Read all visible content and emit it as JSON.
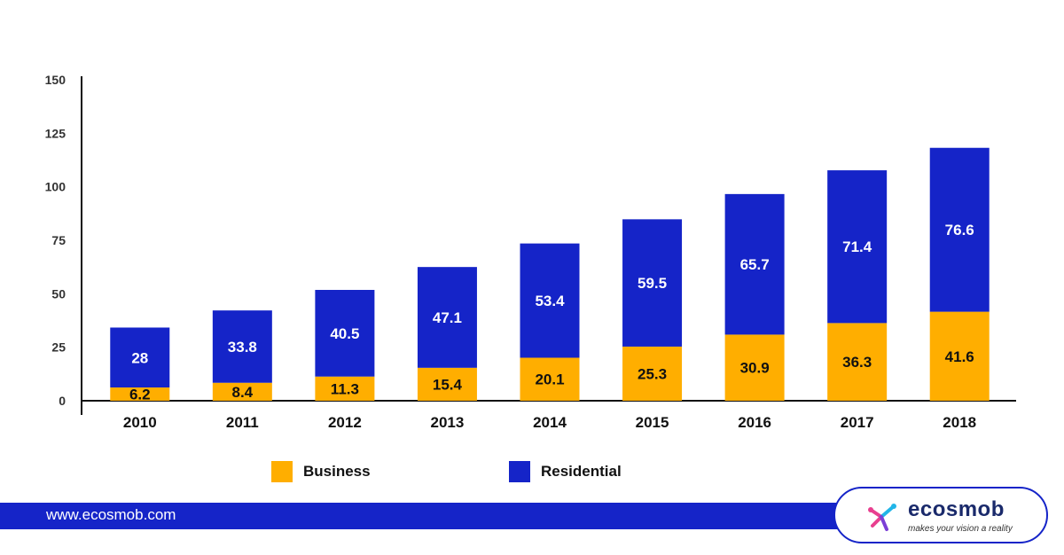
{
  "chart_data": {
    "type": "bar",
    "stacked": true,
    "categories": [
      "2010",
      "2011",
      "2012",
      "2013",
      "2014",
      "2015",
      "2016",
      "2017",
      "2018"
    ],
    "series": [
      {
        "name": "Business",
        "color": "#ffae00",
        "values": [
          6.2,
          8.4,
          11.3,
          15.4,
          20.1,
          25.3,
          30.9,
          36.3,
          41.6
        ],
        "labels": [
          "6.2",
          "8.4",
          "11.3",
          "15.4",
          "20.1",
          "25.3",
          "30.9",
          "36.3",
          "41.6"
        ]
      },
      {
        "name": "Residential",
        "color": "#1524c8",
        "values": [
          28,
          33.8,
          40.5,
          47.1,
          53.4,
          59.5,
          65.7,
          71.4,
          76.6
        ],
        "labels": [
          "28",
          "33.8",
          "40.5",
          "47.1",
          "53.4",
          "59.5",
          "65.7",
          "71.4",
          "76.6"
        ]
      }
    ],
    "title": "",
    "xlabel": "",
    "ylabel": "",
    "ylim": [
      0,
      150
    ],
    "yticks": [
      "0",
      "25",
      "50",
      "75",
      "100",
      "125",
      "150"
    ],
    "grid": false,
    "legend_position": "bottom"
  },
  "legend": {
    "business_label": "Business",
    "residential_label": "Residential"
  },
  "footer": {
    "url": "www.ecosmob.com"
  },
  "logo": {
    "name": "ecosmob",
    "tagline": "makes your vision a reality"
  }
}
